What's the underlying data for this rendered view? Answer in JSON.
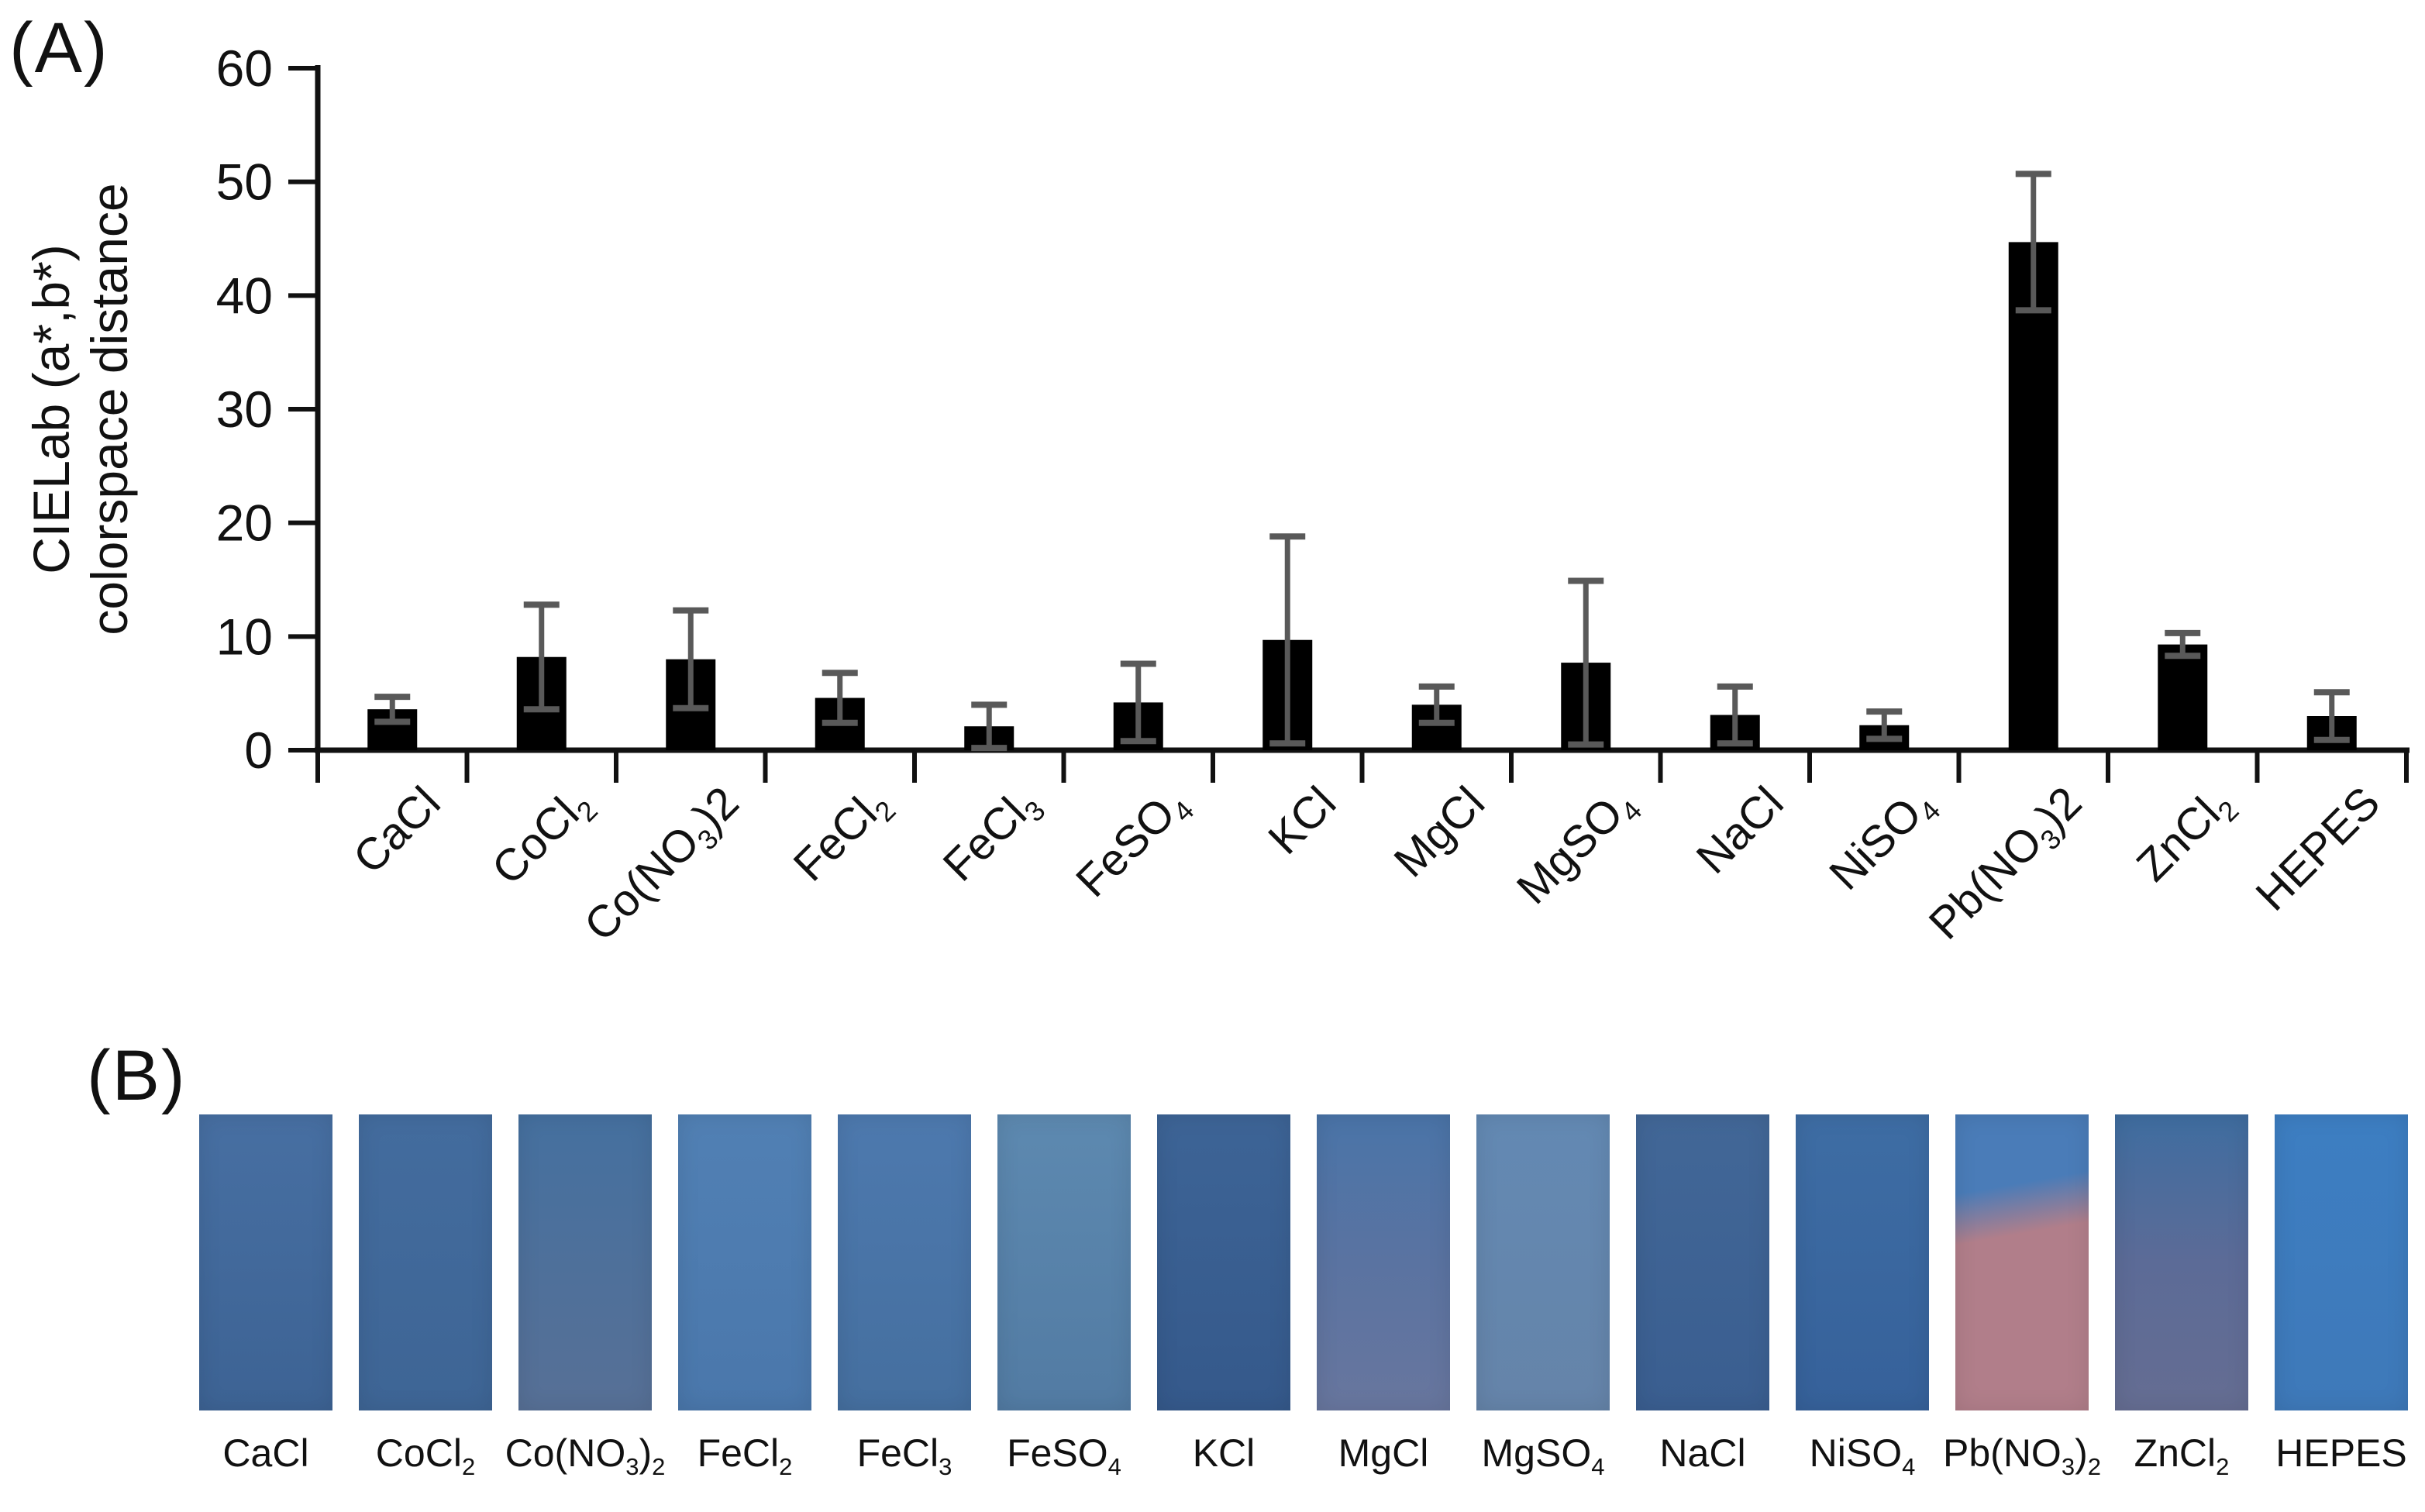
{
  "figure": {
    "panel_a_label": "(A)",
    "panel_b_label": "(B)"
  },
  "chart_data": {
    "type": "bar",
    "title": "",
    "ylabel_line1": "CIELab (a*,b*)",
    "ylabel_line2": "colorspace distance",
    "xlabel": "",
    "ylim": [
      0,
      60
    ],
    "yticks": [
      0,
      10,
      20,
      30,
      40,
      50,
      60
    ],
    "grid": false,
    "legend": null,
    "bar_color": "#000000",
    "error_bar_color": "#595959",
    "axis_color": "#111111",
    "categories": [
      "CaCl",
      "CoCl_2",
      "Co(NO_3)2",
      "FeCl_2",
      "FeCl_3",
      "FeSO_4",
      "KCl",
      "MgCl",
      "MgSO_4",
      "NaCl",
      "NiSO_4",
      "Pb(NO_3)2",
      "ZnCl_2",
      "HEPES"
    ],
    "values": [
      3.6,
      8.2,
      8.0,
      4.6,
      2.1,
      4.2,
      9.7,
      4.0,
      7.7,
      3.1,
      2.2,
      44.7,
      9.3,
      3.0
    ],
    "errors": [
      1.1,
      4.6,
      4.3,
      2.2,
      1.9,
      3.4,
      9.1,
      1.6,
      7.2,
      2.5,
      1.2,
      6.0,
      1.0,
      2.1
    ]
  },
  "panel_b": {
    "swatches": [
      {
        "label": "CaCl",
        "colors": [
          "#476fa2",
          "#3d6394"
        ]
      },
      {
        "label": "CoCl_2",
        "colors": [
          "#436c9e",
          "#3e6595"
        ]
      },
      {
        "label": "Co(NO_3)_2",
        "colors": [
          "#45709f",
          "#577096"
        ]
      },
      {
        "label": "FeCl_2",
        "colors": [
          "#5180b4",
          "#4a77ab"
        ]
      },
      {
        "label": "FeCl_3",
        "colors": [
          "#4d79ae",
          "#456f9f"
        ]
      },
      {
        "label": "FeSO_4",
        "colors": [
          "#5d89b0",
          "#527ba3"
        ]
      },
      {
        "label": "KCl",
        "colors": [
          "#3d6496",
          "#35598b"
        ]
      },
      {
        "label": "MgCl",
        "colors": [
          "#4a74a8",
          "#5a73a1",
          "#68769e"
        ]
      },
      {
        "label": "MgSO_4",
        "colors": [
          "#6389b3",
          "#6584a9"
        ]
      },
      {
        "label": "NaCl",
        "colors": [
          "#426797",
          "#3a5e90"
        ]
      },
      {
        "label": "NiSO_4",
        "colors": [
          "#3e6da4",
          "#36619a"
        ]
      },
      {
        "label": "Pb(NO_3)_2",
        "colors": [
          "#4a7cb8",
          "#b17e8a"
        ],
        "split": 0.32
      },
      {
        "label": "ZnCl_2",
        "colors": [
          "#3f6da0",
          "#5c6b97",
          "#656d92"
        ]
      },
      {
        "label": "HEPES",
        "colors": [
          "#3d7ec2",
          "#3e79b9"
        ]
      }
    ]
  }
}
